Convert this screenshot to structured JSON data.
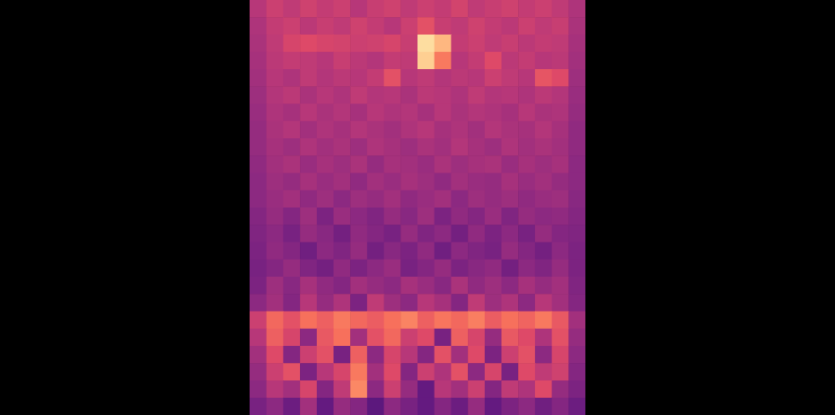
{
  "chart_data": {
    "type": "heatmap",
    "tick_labels": false,
    "xlim": [
      0,
      20
    ],
    "ylim": [
      0,
      24
    ],
    "zlim": [
      0,
      1
    ],
    "cells": [
      [
        0.5,
        0.55,
        0.52,
        0.56,
        0.53,
        0.55,
        0.5,
        0.54,
        0.56,
        0.52,
        0.55,
        0.53,
        0.57,
        0.52,
        0.54,
        0.56,
        0.53,
        0.55,
        0.52,
        0.48
      ],
      [
        0.48,
        0.53,
        0.55,
        0.51,
        0.54,
        0.52,
        0.56,
        0.53,
        0.5,
        0.55,
        0.62,
        0.54,
        0.52,
        0.56,
        0.53,
        0.51,
        0.55,
        0.52,
        0.54,
        0.47
      ],
      [
        0.47,
        0.52,
        0.58,
        0.6,
        0.58,
        0.57,
        0.55,
        0.56,
        0.58,
        0.54,
        0.93,
        0.85,
        0.53,
        0.55,
        0.52,
        0.54,
        0.51,
        0.53,
        0.52,
        0.46
      ],
      [
        0.46,
        0.51,
        0.53,
        0.52,
        0.5,
        0.54,
        0.51,
        0.49,
        0.53,
        0.52,
        0.9,
        0.72,
        0.5,
        0.53,
        0.6,
        0.51,
        0.53,
        0.5,
        0.51,
        0.45
      ],
      [
        0.45,
        0.5,
        0.48,
        0.52,
        0.49,
        0.51,
        0.5,
        0.53,
        0.62,
        0.5,
        0.52,
        0.49,
        0.51,
        0.5,
        0.55,
        0.52,
        0.5,
        0.63,
        0.6,
        0.44
      ],
      [
        0.44,
        0.49,
        0.51,
        0.47,
        0.5,
        0.48,
        0.52,
        0.49,
        0.5,
        0.47,
        0.51,
        0.5,
        0.48,
        0.52,
        0.49,
        0.5,
        0.48,
        0.51,
        0.49,
        0.43
      ],
      [
        0.43,
        0.48,
        0.46,
        0.5,
        0.47,
        0.49,
        0.46,
        0.5,
        0.48,
        0.49,
        0.46,
        0.5,
        0.47,
        0.49,
        0.48,
        0.46,
        0.5,
        0.47,
        0.48,
        0.42
      ],
      [
        0.42,
        0.47,
        0.49,
        0.45,
        0.48,
        0.46,
        0.49,
        0.47,
        0.45,
        0.48,
        0.5,
        0.46,
        0.48,
        0.45,
        0.49,
        0.47,
        0.46,
        0.49,
        0.46,
        0.41
      ],
      [
        0.42,
        0.46,
        0.44,
        0.48,
        0.45,
        0.47,
        0.44,
        0.48,
        0.46,
        0.44,
        0.47,
        0.45,
        0.49,
        0.46,
        0.44,
        0.48,
        0.45,
        0.47,
        0.45,
        0.41
      ],
      [
        0.41,
        0.45,
        0.47,
        0.43,
        0.46,
        0.44,
        0.47,
        0.42,
        0.46,
        0.45,
        0.43,
        0.47,
        0.44,
        0.46,
        0.47,
        0.43,
        0.46,
        0.44,
        0.46,
        0.4
      ],
      [
        0.4,
        0.44,
        0.42,
        0.46,
        0.43,
        0.45,
        0.41,
        0.45,
        0.43,
        0.46,
        0.44,
        0.41,
        0.45,
        0.43,
        0.42,
        0.46,
        0.43,
        0.45,
        0.42,
        0.4
      ],
      [
        0.4,
        0.43,
        0.45,
        0.41,
        0.44,
        0.4,
        0.44,
        0.42,
        0.45,
        0.41,
        0.43,
        0.45,
        0.4,
        0.44,
        0.42,
        0.44,
        0.41,
        0.43,
        0.44,
        0.39
      ],
      [
        0.38,
        0.42,
        0.38,
        0.44,
        0.36,
        0.43,
        0.4,
        0.37,
        0.42,
        0.39,
        0.44,
        0.36,
        0.41,
        0.38,
        0.43,
        0.37,
        0.42,
        0.4,
        0.41,
        0.38
      ],
      [
        0.37,
        0.4,
        0.35,
        0.42,
        0.39,
        0.34,
        0.41,
        0.38,
        0.35,
        0.42,
        0.37,
        0.4,
        0.34,
        0.41,
        0.36,
        0.4,
        0.35,
        0.42,
        0.38,
        0.37
      ],
      [
        0.36,
        0.41,
        0.38,
        0.33,
        0.4,
        0.37,
        0.42,
        0.34,
        0.39,
        0.36,
        0.41,
        0.33,
        0.4,
        0.37,
        0.35,
        0.42,
        0.38,
        0.34,
        0.4,
        0.36
      ],
      [
        0.35,
        0.38,
        0.42,
        0.37,
        0.34,
        0.41,
        0.36,
        0.4,
        0.43,
        0.35,
        0.38,
        0.42,
        0.36,
        0.39,
        0.41,
        0.34,
        0.4,
        0.37,
        0.42,
        0.36
      ],
      [
        0.36,
        0.44,
        0.39,
        0.46,
        0.41,
        0.38,
        0.45,
        0.42,
        0.4,
        0.46,
        0.43,
        0.39,
        0.47,
        0.41,
        0.44,
        0.4,
        0.46,
        0.42,
        0.45,
        0.37
      ],
      [
        0.4,
        0.45,
        0.38,
        0.5,
        0.42,
        0.48,
        0.36,
        0.52,
        0.44,
        0.4,
        0.5,
        0.46,
        0.38,
        0.52,
        0.44,
        0.48,
        0.4,
        0.5,
        0.45,
        0.38
      ],
      [
        0.55,
        0.68,
        0.62,
        0.7,
        0.66,
        0.72,
        0.68,
        0.65,
        0.7,
        0.74,
        0.66,
        0.71,
        0.68,
        0.73,
        0.65,
        0.7,
        0.67,
        0.72,
        0.64,
        0.45
      ],
      [
        0.5,
        0.66,
        0.58,
        0.4,
        0.64,
        0.7,
        0.45,
        0.62,
        0.68,
        0.55,
        0.6,
        0.35,
        0.66,
        0.58,
        0.42,
        0.64,
        0.6,
        0.48,
        0.62,
        0.42
      ],
      [
        0.45,
        0.6,
        0.38,
        0.55,
        0.62,
        0.35,
        0.66,
        0.4,
        0.58,
        0.5,
        0.38,
        0.62,
        0.45,
        0.6,
        0.36,
        0.55,
        0.62,
        0.4,
        0.58,
        0.4
      ],
      [
        0.42,
        0.55,
        0.62,
        0.36,
        0.5,
        0.58,
        0.72,
        0.45,
        0.6,
        0.38,
        0.55,
        0.48,
        0.62,
        0.4,
        0.58,
        0.35,
        0.6,
        0.52,
        0.56,
        0.38
      ],
      [
        0.4,
        0.5,
        0.45,
        0.58,
        0.38,
        0.52,
        0.75,
        0.4,
        0.55,
        0.42,
        0.3,
        0.5,
        0.45,
        0.55,
        0.38,
        0.52,
        0.48,
        0.6,
        0.42,
        0.36
      ],
      [
        0.35,
        0.4,
        0.32,
        0.45,
        0.3,
        0.42,
        0.38,
        0.28,
        0.4,
        0.35,
        0.3,
        0.38,
        0.32,
        0.42,
        0.3,
        0.36,
        0.4,
        0.33,
        0.38,
        0.32
      ]
    ]
  }
}
